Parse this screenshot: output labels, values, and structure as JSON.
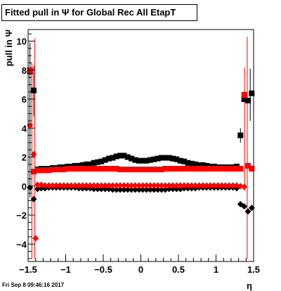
{
  "chart_data": {
    "type": "scatter",
    "title": "Fitted pull in  Ψ  for Global Rec All EtapT",
    "xlabel": "η",
    "ylabel": "pull in Ψ",
    "xlim": [
      -1.5,
      1.5
    ],
    "ylim": [
      -5.2,
      10.8
    ],
    "x_ticks": [
      -1.5,
      -1,
      -0.5,
      0,
      0.5,
      1,
      1.5
    ],
    "x_tick_labels": [
      "−1.5",
      "−1",
      "−0.5",
      "0",
      "0.5",
      "1",
      "1.5"
    ],
    "y_ticks": [
      -4,
      -2,
      0,
      2,
      4,
      6,
      8,
      10
    ],
    "y_tick_labels": [
      "−4",
      "−2",
      "0",
      "2",
      "4",
      "6",
      "8",
      "10"
    ],
    "grid": false,
    "series": [
      {
        "color": "#000000",
        "marker": "square",
        "points": [
          [
            -1.475,
            7.9
          ],
          [
            -1.425,
            6.6
          ],
          [
            -1.375,
            1.15
          ],
          [
            -1.325,
            1.2
          ],
          [
            -1.275,
            1.2
          ],
          [
            -1.225,
            1.2
          ],
          [
            -1.175,
            1.25
          ],
          [
            -1.125,
            1.25
          ],
          [
            -1.075,
            1.3
          ],
          [
            -1.025,
            1.3
          ],
          [
            -0.975,
            1.35
          ],
          [
            -0.925,
            1.35
          ],
          [
            -0.875,
            1.4
          ],
          [
            -0.825,
            1.4
          ],
          [
            -0.775,
            1.45
          ],
          [
            -0.725,
            1.5
          ],
          [
            -0.675,
            1.5
          ],
          [
            -0.625,
            1.6
          ],
          [
            -0.575,
            1.65
          ],
          [
            -0.525,
            1.7
          ],
          [
            -0.475,
            1.8
          ],
          [
            -0.425,
            1.9
          ],
          [
            -0.375,
            1.95
          ],
          [
            -0.325,
            2.05
          ],
          [
            -0.275,
            2.1
          ],
          [
            -0.225,
            2.1
          ],
          [
            -0.175,
            2.0
          ],
          [
            -0.125,
            1.9
          ],
          [
            -0.075,
            1.8
          ],
          [
            -0.025,
            1.75
          ],
          [
            0.025,
            1.75
          ],
          [
            0.075,
            1.75
          ],
          [
            0.125,
            1.8
          ],
          [
            0.175,
            1.85
          ],
          [
            0.225,
            1.9
          ],
          [
            0.275,
            1.95
          ],
          [
            0.325,
            1.95
          ],
          [
            0.375,
            1.95
          ],
          [
            0.425,
            1.9
          ],
          [
            0.475,
            1.85
          ],
          [
            0.525,
            1.75
          ],
          [
            0.575,
            1.7
          ],
          [
            0.625,
            1.6
          ],
          [
            0.675,
            1.55
          ],
          [
            0.725,
            1.5
          ],
          [
            0.775,
            1.45
          ],
          [
            0.825,
            1.45
          ],
          [
            0.875,
            1.4
          ],
          [
            0.925,
            1.35
          ],
          [
            0.975,
            1.35
          ],
          [
            1.025,
            1.3
          ],
          [
            1.075,
            1.3
          ],
          [
            1.125,
            1.3
          ],
          [
            1.175,
            1.3
          ],
          [
            1.225,
            1.3
          ],
          [
            1.275,
            1.35
          ],
          [
            1.325,
            3.5
          ],
          [
            1.375,
            6.0
          ],
          [
            1.425,
            5.9
          ],
          [
            1.475,
            6.4
          ]
        ]
      },
      {
        "color": "#000000",
        "marker": "diamond",
        "points": [
          [
            -1.475,
            -0.1
          ],
          [
            -1.425,
            -0.9
          ],
          [
            -1.375,
            -0.2
          ],
          [
            -1.325,
            -0.15
          ],
          [
            -1.275,
            -0.15
          ],
          [
            -1.225,
            -0.1
          ],
          [
            -1.175,
            -0.1
          ],
          [
            -1.125,
            -0.1
          ],
          [
            -1.075,
            -0.1
          ],
          [
            -1.025,
            -0.1
          ],
          [
            -0.975,
            -0.1
          ],
          [
            -0.925,
            -0.1
          ],
          [
            -0.875,
            -0.1
          ],
          [
            -0.825,
            -0.15
          ],
          [
            -0.775,
            -0.15
          ],
          [
            -0.725,
            -0.15
          ],
          [
            -0.675,
            -0.15
          ],
          [
            -0.625,
            -0.2
          ],
          [
            -0.575,
            -0.2
          ],
          [
            -0.525,
            -0.2
          ],
          [
            -0.475,
            -0.2
          ],
          [
            -0.425,
            -0.2
          ],
          [
            -0.375,
            -0.25
          ],
          [
            -0.325,
            -0.25
          ],
          [
            -0.275,
            -0.25
          ],
          [
            -0.225,
            -0.25
          ],
          [
            -0.175,
            -0.25
          ],
          [
            -0.125,
            -0.25
          ],
          [
            -0.075,
            -0.25
          ],
          [
            -0.025,
            -0.25
          ],
          [
            0.025,
            -0.25
          ],
          [
            0.075,
            -0.25
          ],
          [
            0.125,
            -0.25
          ],
          [
            0.175,
            -0.25
          ],
          [
            0.225,
            -0.25
          ],
          [
            0.275,
            -0.25
          ],
          [
            0.325,
            -0.25
          ],
          [
            0.375,
            -0.2
          ],
          [
            0.425,
            -0.2
          ],
          [
            0.475,
            -0.2
          ],
          [
            0.525,
            -0.2
          ],
          [
            0.575,
            -0.15
          ],
          [
            0.625,
            -0.15
          ],
          [
            0.675,
            -0.15
          ],
          [
            0.725,
            -0.15
          ],
          [
            0.775,
            -0.1
          ],
          [
            0.825,
            -0.1
          ],
          [
            0.875,
            -0.1
          ],
          [
            0.925,
            -0.1
          ],
          [
            0.975,
            -0.1
          ],
          [
            1.025,
            -0.1
          ],
          [
            1.075,
            -0.1
          ],
          [
            1.125,
            -0.1
          ],
          [
            1.175,
            -0.1
          ],
          [
            1.225,
            -0.1
          ],
          [
            1.275,
            -0.15
          ],
          [
            1.325,
            -1.25
          ],
          [
            1.375,
            -1.4
          ],
          [
            1.425,
            -1.75
          ],
          [
            1.475,
            -1.5
          ]
        ]
      },
      {
        "color": "#ff0000",
        "marker": "square",
        "points": [
          [
            -1.475,
            8.0
          ],
          [
            -1.425,
            1.0
          ],
          [
            -1.375,
            1.1
          ],
          [
            -1.325,
            1.1
          ],
          [
            -1.275,
            1.1
          ],
          [
            -1.225,
            1.1
          ],
          [
            -1.175,
            1.15
          ],
          [
            -1.125,
            1.15
          ],
          [
            -1.075,
            1.15
          ],
          [
            -1.025,
            1.15
          ],
          [
            -0.975,
            1.2
          ],
          [
            -0.925,
            1.2
          ],
          [
            -0.875,
            1.2
          ],
          [
            -0.825,
            1.2
          ],
          [
            -0.775,
            1.2
          ],
          [
            -0.725,
            1.2
          ],
          [
            -0.675,
            1.2
          ],
          [
            -0.625,
            1.2
          ],
          [
            -0.575,
            1.2
          ],
          [
            -0.525,
            1.2
          ],
          [
            -0.475,
            1.2
          ],
          [
            -0.425,
            1.2
          ],
          [
            -0.375,
            1.2
          ],
          [
            -0.325,
            1.2
          ],
          [
            -0.275,
            1.15
          ],
          [
            -0.225,
            1.15
          ],
          [
            -0.175,
            1.15
          ],
          [
            -0.125,
            1.15
          ],
          [
            -0.075,
            1.15
          ],
          [
            -0.025,
            1.15
          ],
          [
            0.025,
            1.15
          ],
          [
            0.075,
            1.15
          ],
          [
            0.125,
            1.15
          ],
          [
            0.175,
            1.15
          ],
          [
            0.225,
            1.15
          ],
          [
            0.275,
            1.15
          ],
          [
            0.325,
            1.2
          ],
          [
            0.375,
            1.2
          ],
          [
            0.425,
            1.2
          ],
          [
            0.475,
            1.2
          ],
          [
            0.525,
            1.2
          ],
          [
            0.575,
            1.2
          ],
          [
            0.625,
            1.2
          ],
          [
            0.675,
            1.2
          ],
          [
            0.725,
            1.2
          ],
          [
            0.775,
            1.2
          ],
          [
            0.825,
            1.2
          ],
          [
            0.875,
            1.2
          ],
          [
            0.925,
            1.2
          ],
          [
            0.975,
            1.2
          ],
          [
            1.025,
            1.2
          ],
          [
            1.075,
            1.2
          ],
          [
            1.125,
            1.2
          ],
          [
            1.175,
            1.2
          ],
          [
            1.225,
            1.2
          ],
          [
            1.275,
            1.2
          ],
          [
            1.325,
            1.2
          ],
          [
            1.375,
            6.3
          ],
          [
            1.425,
            1.4
          ],
          [
            1.475,
            1.2
          ]
        ]
      },
      {
        "color": "#ff0000",
        "marker": "diamond",
        "points": [
          [
            -1.475,
            4.2
          ],
          [
            -1.425,
            2.2
          ],
          [
            -1.4,
            -3.6
          ],
          [
            -1.375,
            0.1
          ],
          [
            -1.325,
            0.1
          ],
          [
            -1.275,
            0.05
          ],
          [
            -1.225,
            0.05
          ],
          [
            -1.175,
            0.05
          ],
          [
            -1.125,
            0.05
          ],
          [
            -1.075,
            0.05
          ],
          [
            -1.025,
            0.05
          ],
          [
            -0.975,
            0.05
          ],
          [
            -0.925,
            0.05
          ],
          [
            -0.875,
            0.05
          ],
          [
            -0.825,
            0.05
          ],
          [
            -0.775,
            0.05
          ],
          [
            -0.725,
            0.05
          ],
          [
            -0.675,
            0.05
          ],
          [
            -0.625,
            0.05
          ],
          [
            -0.575,
            0.05
          ],
          [
            -0.525,
            0.05
          ],
          [
            -0.475,
            0.05
          ],
          [
            -0.425,
            0.05
          ],
          [
            -0.375,
            0.05
          ],
          [
            -0.325,
            0.05
          ],
          [
            -0.275,
            0.05
          ],
          [
            -0.225,
            0.05
          ],
          [
            -0.175,
            0.05
          ],
          [
            -0.125,
            0.05
          ],
          [
            -0.075,
            0.05
          ],
          [
            -0.025,
            0.05
          ],
          [
            0.025,
            0.05
          ],
          [
            0.075,
            0.05
          ],
          [
            0.125,
            0.05
          ],
          [
            0.175,
            0.05
          ],
          [
            0.225,
            0.05
          ],
          [
            0.275,
            0.05
          ],
          [
            0.325,
            0.05
          ],
          [
            0.375,
            0.05
          ],
          [
            0.425,
            0.05
          ],
          [
            0.475,
            0.05
          ],
          [
            0.525,
            0.05
          ],
          [
            0.575,
            0.05
          ],
          [
            0.625,
            0.05
          ],
          [
            0.675,
            0.05
          ],
          [
            0.725,
            0.05
          ],
          [
            0.775,
            0.05
          ],
          [
            0.825,
            0.05
          ],
          [
            0.875,
            0.05
          ],
          [
            0.925,
            0.05
          ],
          [
            0.975,
            0.05
          ],
          [
            1.025,
            0.05
          ],
          [
            1.075,
            0.05
          ],
          [
            1.125,
            0.05
          ],
          [
            1.175,
            0.05
          ],
          [
            1.225,
            0.05
          ],
          [
            1.275,
            0.05
          ],
          [
            1.325,
            0.0
          ],
          [
            1.375,
            -0.05
          ],
          [
            1.425,
            1.4
          ]
        ]
      }
    ],
    "error_bars": [
      {
        "color": "#000000",
        "x": -1.475,
        "y_low": -0.8,
        "y_high": 9.9
      },
      {
        "color": "#000000",
        "x": -1.425,
        "y_low": 4.8,
        "y_high": 8.3
      },
      {
        "color": "#ff0000",
        "x": -1.45,
        "y_low": -5.0,
        "y_high": 8.5
      },
      {
        "color": "#ff0000",
        "x": -1.41,
        "y_low": -5.0,
        "y_high": 10.2
      },
      {
        "color": "#ff0000",
        "x": 1.38,
        "y_low": -0.3,
        "y_high": 8.2
      },
      {
        "color": "#ff0000",
        "x": 1.415,
        "y_low": -5.0,
        "y_high": 10.3
      },
      {
        "color": "#000000",
        "x": 1.325,
        "y_low": 3.0,
        "y_high": 4.0
      },
      {
        "color": "#000000",
        "x": 1.455,
        "y_low": 4.5,
        "y_high": 8.1
      }
    ]
  },
  "footer": {
    "datetime": "Fri Sep  8 09:46:16 2017"
  }
}
